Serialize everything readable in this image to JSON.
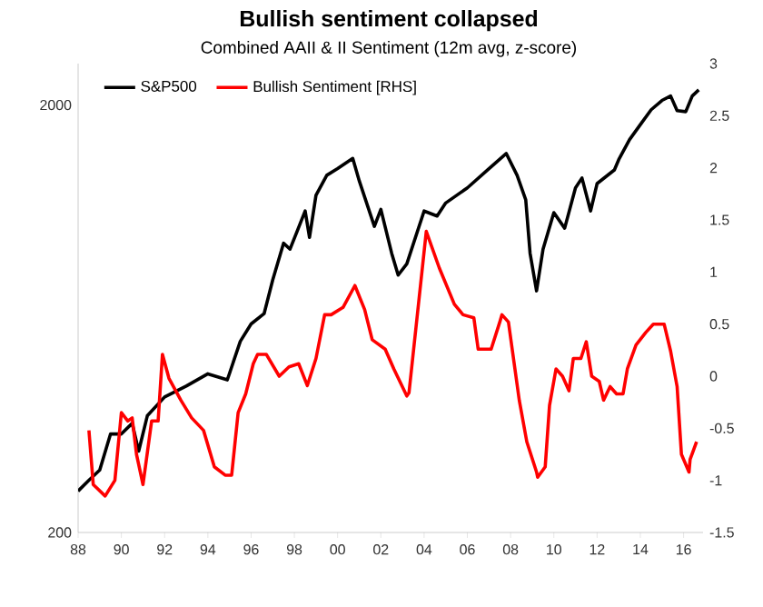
{
  "chart_data": {
    "type": "line",
    "title": "Bullish sentiment collapsed",
    "subtitle": "Combined AAII & II Sentiment (12m avg, z-score)",
    "log": "y",
    "legend": "top left",
    "marker": "none",
    "line_style": "solid",
    "xlim": [
      1988,
      2016.9
    ],
    "xticks": [
      {
        "value": 1988,
        "label": "88"
      },
      {
        "value": 1990,
        "label": "90"
      },
      {
        "value": 1992,
        "label": "92"
      },
      {
        "value": 1994,
        "label": "94"
      },
      {
        "value": 1996,
        "label": "96"
      },
      {
        "value": 1998,
        "label": "98"
      },
      {
        "value": 2000,
        "label": "00"
      },
      {
        "value": 2002,
        "label": "02"
      },
      {
        "value": 2004,
        "label": "04"
      },
      {
        "value": 2006,
        "label": "06"
      },
      {
        "value": 2008,
        "label": "08"
      },
      {
        "value": 2010,
        "label": "10"
      },
      {
        "value": 2012,
        "label": "12"
      },
      {
        "value": 2014,
        "label": "14"
      },
      {
        "value": 2016,
        "label": "16"
      }
    ],
    "ylim": [
      200,
      2500
    ],
    "yticks": [
      200,
      2000
    ],
    "y2lim": [
      -1.5,
      3
    ],
    "y2ticks": [
      -1.5,
      -1,
      -0.5,
      0,
      0.5,
      1,
      1.5,
      2,
      2.5,
      3
    ],
    "series": [
      {
        "name": "S&P500",
        "color": "#000000",
        "x": [
          1988.0,
          1988.5,
          1989.0,
          1989.5,
          1990.0,
          1990.5,
          1990.8,
          1991.2,
          1992.0,
          1993.0,
          1994.0,
          1994.9,
          1995.5,
          1996.0,
          1996.6,
          1997.0,
          1997.5,
          1997.8,
          1998.5,
          1998.7,
          1999.0,
          1999.5,
          2000.0,
          2000.7,
          2001.0,
          2001.7,
          2002.0,
          2002.5,
          2002.8,
          2003.2,
          2004.0,
          2004.6,
          2005.0,
          2006.0,
          2007.0,
          2007.8,
          2008.3,
          2008.7,
          2008.9,
          2009.2,
          2009.5,
          2010.0,
          2010.5,
          2011.0,
          2011.3,
          2011.7,
          2012.0,
          2012.8,
          2013.0,
          2013.5,
          2014.0,
          2014.5,
          2015.0,
          2015.4,
          2015.7,
          2016.1,
          2016.4,
          2016.7
        ],
        "values": [
          250,
          265,
          280,
          340,
          340,
          360,
          310,
          375,
          415,
          440,
          470,
          455,
          560,
          615,
          650,
          780,
          950,
          920,
          1130,
          980,
          1230,
          1370,
          1420,
          1500,
          1330,
          1040,
          1140,
          900,
          800,
          850,
          1130,
          1100,
          1180,
          1280,
          1420,
          1540,
          1370,
          1200,
          900,
          735,
          920,
          1120,
          1030,
          1280,
          1350,
          1130,
          1310,
          1410,
          1490,
          1660,
          1800,
          1950,
          2050,
          2100,
          1940,
          1930,
          2100,
          2170
        ]
      },
      {
        "name": "Bullish Sentiment [RHS]",
        "color": "#ff0000",
        "axis": "y2",
        "x": [
          1988.5,
          1988.7,
          1989.25,
          1989.7,
          1990.0,
          1990.3,
          1990.5,
          1990.7,
          1991.0,
          1991.4,
          1991.7,
          1991.9,
          1992.2,
          1992.75,
          1993.25,
          1993.8,
          1994.3,
          1994.8,
          1995.1,
          1995.4,
          1995.75,
          1996.1,
          1996.3,
          1996.7,
          1997.3,
          1997.75,
          1998.2,
          1998.6,
          1999.0,
          1999.4,
          1999.7,
          2000.25,
          2000.8,
          2001.25,
          2001.6,
          2002.2,
          2002.6,
          2003.2,
          2003.3,
          2004.1,
          2004.7,
          2005.4,
          2005.8,
          2006.3,
          2006.5,
          2007.1,
          2007.5,
          2007.6,
          2007.9,
          2008.2,
          2008.4,
          2008.75,
          2009.2,
          2009.25,
          2009.6,
          2009.8,
          2010.1,
          2010.4,
          2010.7,
          2010.9,
          2011.25,
          2011.5,
          2011.75,
          2012.1,
          2012.3,
          2012.6,
          2012.9,
          2013.2,
          2013.4,
          2013.8,
          2014.25,
          2014.6,
          2015.1,
          2015.4,
          2015.7,
          2015.9,
          2016.25,
          2016.3,
          2016.6
        ],
        "values": [
          -0.52,
          -1.04,
          -1.15,
          -1.0,
          -0.35,
          -0.43,
          -0.4,
          -0.75,
          -1.04,
          -0.43,
          -0.43,
          0.21,
          -0.02,
          -0.23,
          -0.4,
          -0.52,
          -0.87,
          -0.95,
          -0.95,
          -0.35,
          -0.17,
          0.12,
          0.21,
          0.21,
          0.0,
          0.09,
          0.12,
          -0.09,
          0.17,
          0.59,
          0.59,
          0.66,
          0.87,
          0.64,
          0.35,
          0.26,
          0.07,
          -0.19,
          -0.16,
          1.39,
          1.04,
          0.69,
          0.59,
          0.56,
          0.26,
          0.26,
          0.52,
          0.59,
          0.52,
          0.07,
          -0.23,
          -0.63,
          -0.92,
          -0.97,
          -0.87,
          -0.28,
          0.07,
          0.0,
          -0.14,
          0.17,
          0.17,
          0.33,
          0.0,
          -0.05,
          -0.23,
          -0.1,
          -0.17,
          -0.17,
          0.07,
          0.3,
          0.42,
          0.5,
          0.5,
          0.24,
          -0.1,
          -0.75,
          -0.92,
          -0.8,
          -0.63
        ]
      }
    ]
  }
}
